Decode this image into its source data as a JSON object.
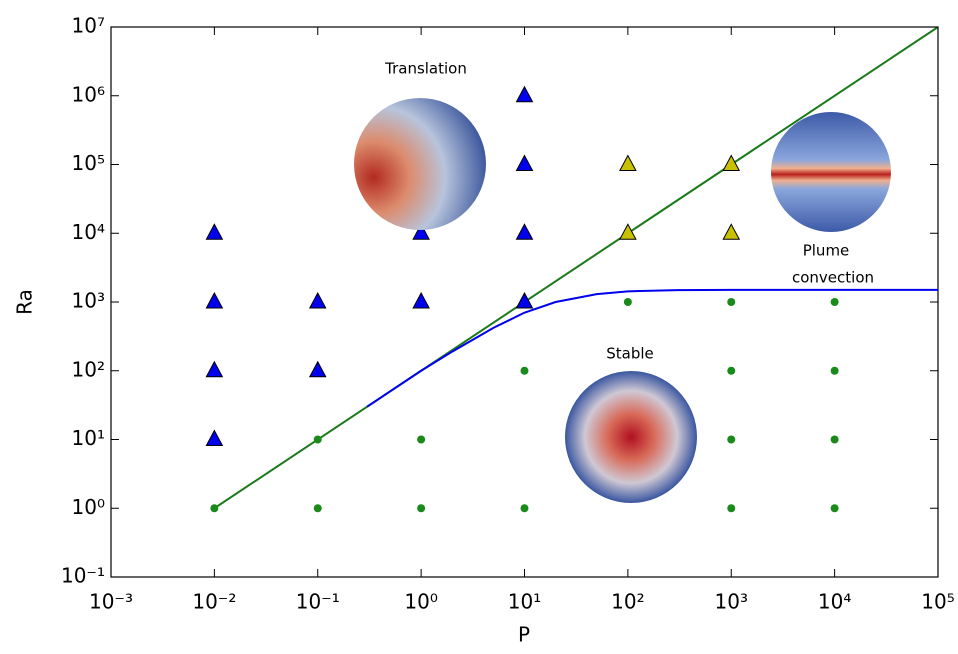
{
  "chart_data": {
    "type": "scatter",
    "xlabel": "P",
    "ylabel": "Ra",
    "xscale": "log",
    "yscale": "log",
    "xlim": [
      0.001,
      100000
    ],
    "ylim": [
      0.1,
      10000000
    ],
    "xticks": [
      {
        "value": 0.001,
        "label": "10⁻³"
      },
      {
        "value": 0.01,
        "label": "10⁻²"
      },
      {
        "value": 0.1,
        "label": "10⁻¹"
      },
      {
        "value": 1,
        "label": "10⁰"
      },
      {
        "value": 10,
        "label": "10¹"
      },
      {
        "value": 100,
        "label": "10²"
      },
      {
        "value": 1000,
        "label": "10³"
      },
      {
        "value": 10000,
        "label": "10⁴"
      },
      {
        "value": 100000,
        "label": "10⁵"
      }
    ],
    "yticks": [
      {
        "value": 0.1,
        "label": "10⁻¹"
      },
      {
        "value": 1,
        "label": "10⁰"
      },
      {
        "value": 10,
        "label": "10¹"
      },
      {
        "value": 100,
        "label": "10²"
      },
      {
        "value": 1000,
        "label": "10³"
      },
      {
        "value": 10000,
        "label": "10⁴"
      },
      {
        "value": 100000,
        "label": "10⁵"
      },
      {
        "value": 1000000,
        "label": "10⁶"
      },
      {
        "value": 10000000,
        "label": "10⁷"
      }
    ],
    "annotations": [
      "Translation",
      "Stable",
      "Plume",
      "convection"
    ],
    "series": [
      {
        "kind": "points",
        "marker": "triangle",
        "color": "#0000ee",
        "x": [
          0.01,
          0.01,
          0.01,
          0.01,
          0.1,
          0.1,
          1,
          1,
          10,
          10,
          10,
          10
        ],
        "values": [
          10000,
          1000,
          100,
          10,
          1000,
          100,
          10000,
          1000,
          1000000,
          100000,
          10000,
          1000
        ]
      },
      {
        "kind": "points",
        "marker": "triangle",
        "color": "#c8c000",
        "x": [
          100,
          100,
          1000,
          1000
        ],
        "values": [
          100000,
          10000,
          100000,
          10000
        ]
      },
      {
        "kind": "points",
        "marker": "circle",
        "color": "#1a8a1a",
        "x": [
          0.01,
          0.1,
          0.1,
          1,
          1,
          10,
          10,
          100,
          1000,
          1000,
          1000,
          1000,
          10000,
          10000,
          10000,
          10000
        ],
        "values": [
          1,
          10,
          1,
          10,
          1,
          100,
          1,
          1000,
          1000,
          100,
          10,
          1,
          1000,
          100,
          10,
          1
        ]
      },
      {
        "kind": "line",
        "color": "#1a7a1a",
        "x": [
          0.01,
          100000
        ],
        "values": [
          1,
          10000000
        ]
      },
      {
        "kind": "line",
        "color": "#0000ee",
        "x": [
          0.3,
          1,
          2,
          5,
          10,
          20,
          50,
          100,
          300,
          1000,
          100000
        ],
        "values": [
          30,
          100,
          190,
          420,
          700,
          1000,
          1300,
          1430,
          1490,
          1500,
          1500
        ]
      }
    ]
  }
}
